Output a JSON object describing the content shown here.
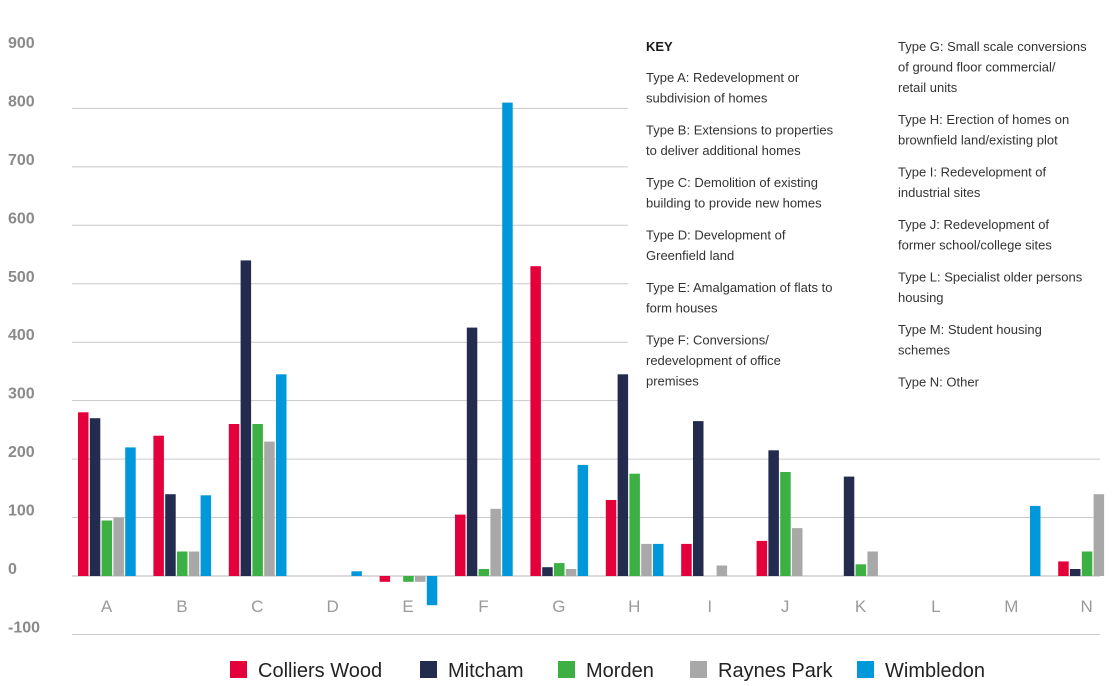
{
  "chart_data": {
    "type": "bar",
    "categories": [
      "A",
      "B",
      "C",
      "D",
      "E",
      "F",
      "G",
      "H",
      "I",
      "J",
      "K",
      "L",
      "M",
      "N"
    ],
    "ylim": [
      -100,
      900
    ],
    "yticks": [
      "900",
      "800",
      "700",
      "600",
      "500",
      "400",
      "300",
      "200",
      "100",
      "0",
      "-100"
    ],
    "grid": true,
    "legend_position": "bottom",
    "series": [
      {
        "name": "Colliers Wood",
        "color": "#e4003b",
        "values": [
          280,
          240,
          260,
          0,
          -10,
          105,
          530,
          130,
          55,
          60,
          0,
          0,
          0,
          25
        ]
      },
      {
        "name": "Mitcham",
        "color": "#232b4f",
        "values": [
          270,
          140,
          540,
          0,
          0,
          425,
          15,
          345,
          265,
          215,
          170,
          0,
          0,
          12
        ]
      },
      {
        "name": "Morden",
        "color": "#3cb043",
        "values": [
          95,
          42,
          260,
          0,
          -10,
          12,
          22,
          175,
          0,
          178,
          20,
          0,
          0,
          42
        ]
      },
      {
        "name": "Raynes Park",
        "color": "#a8a8a8",
        "values": [
          100,
          42,
          230,
          0,
          -10,
          115,
          12,
          55,
          18,
          82,
          42,
          0,
          0,
          140
        ]
      },
      {
        "name": "Wimbledon",
        "color": "#0098db",
        "values": [
          220,
          138,
          345,
          8,
          -50,
          810,
          190,
          55,
          0,
          0,
          0,
          0,
          120,
          0
        ]
      }
    ],
    "key": {
      "title": "KEY",
      "col1": [
        [
          "Type A: Redevelopment or",
          "subdivision of homes"
        ],
        [
          "Type B: Extensions to properties",
          "to deliver additional homes"
        ],
        [
          "Type C: Demolition of existing",
          "building to provide new homes"
        ],
        [
          "Type D: Development of",
          "Greenfield land"
        ],
        [
          "Type E: Amalgamation of flats to",
          "form houses"
        ],
        [
          "Type F: Conversions/",
          "redevelopment of office",
          "premises"
        ]
      ],
      "col2": [
        [
          "Type G: Small scale conversions",
          "of ground floor commercial/",
          "retail units"
        ],
        [
          "Type H: Erection of homes on",
          "brownfield land/existing plot"
        ],
        [
          "Type I: Redevelopment of",
          "industrial sites"
        ],
        [
          "Type J: Redevelopment of",
          "former school/college sites"
        ],
        [
          "Type L: Specialist older persons",
          "housing"
        ],
        [
          "Type M: Student housing",
          "schemes"
        ],
        [
          "Type N: Other"
        ]
      ]
    }
  }
}
